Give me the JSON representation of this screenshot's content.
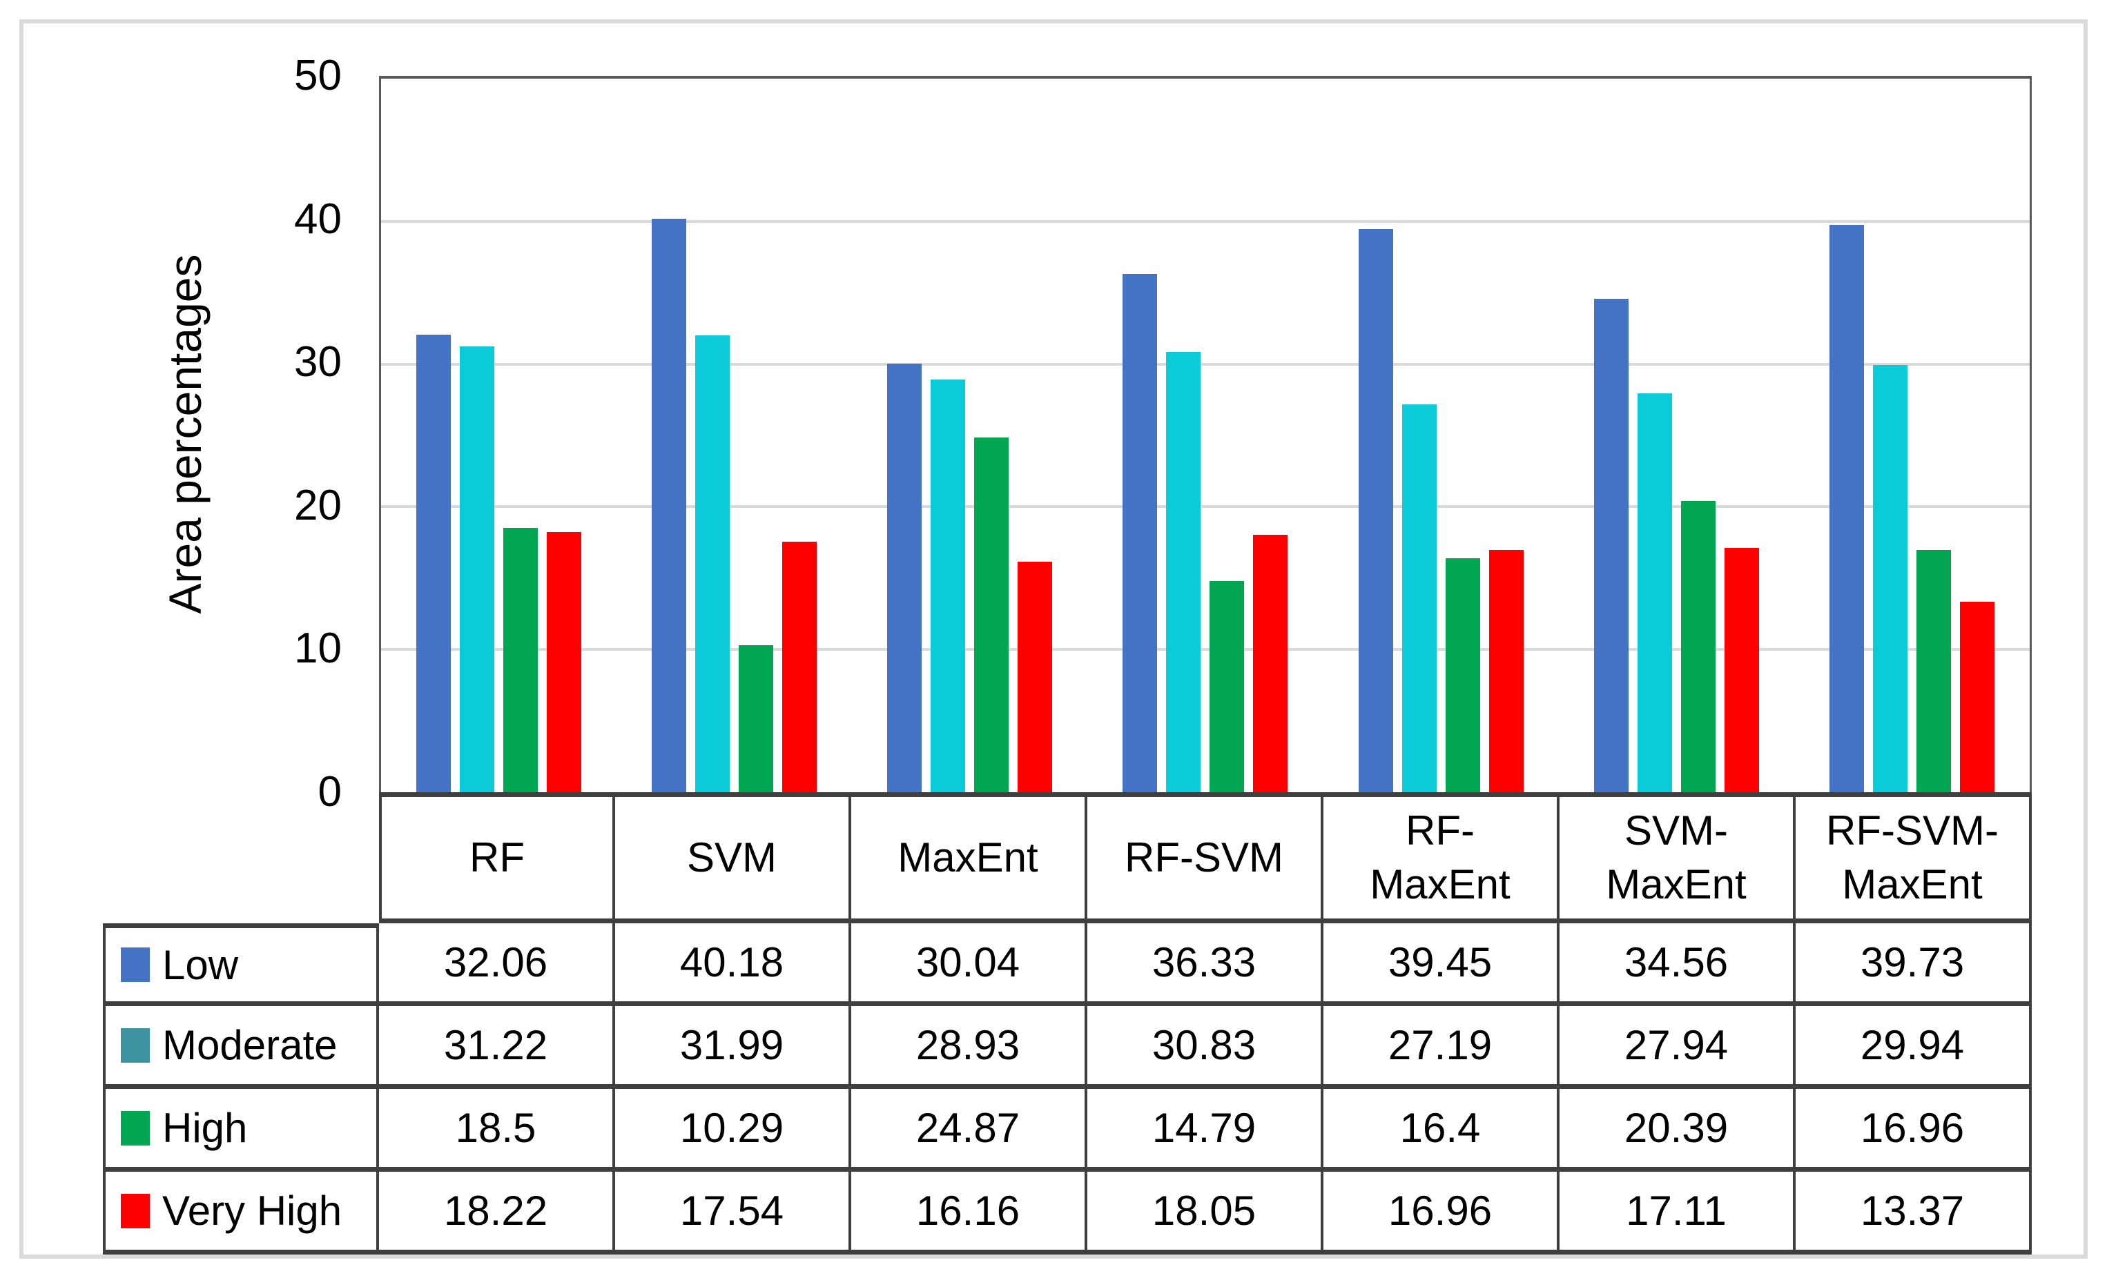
{
  "chart_data": {
    "type": "bar",
    "title": "",
    "xlabel": "",
    "ylabel": "Area percentages",
    "ylim": [
      0,
      50
    ],
    "yticks": [
      0,
      10,
      20,
      30,
      40,
      50
    ],
    "grid": true,
    "legend_position": "table-left",
    "categories": [
      "RF",
      "SVM",
      "MaxEnt",
      "RF-SVM",
      "RF-MaxEnt",
      "SVM-MaxEnt",
      "RF-SVM-MaxEnt"
    ],
    "series": [
      {
        "name": "Low",
        "bar_color": "#4472C4",
        "legend_color": "#4472C4",
        "values": [
          32.06,
          40.18,
          30.04,
          36.33,
          39.45,
          34.56,
          39.73
        ]
      },
      {
        "name": "Moderate",
        "bar_color": "#0BCBD8",
        "legend_color": "#3D94A0",
        "values": [
          31.22,
          31.99,
          28.93,
          30.83,
          27.19,
          27.94,
          29.94
        ]
      },
      {
        "name": "High",
        "bar_color": "#00A651",
        "legend_color": "#00A651",
        "values": [
          18.5,
          10.29,
          24.87,
          14.79,
          16.4,
          20.39,
          16.96
        ]
      },
      {
        "name": "Very High",
        "bar_color": "#FF0000",
        "legend_color": "#FF0000",
        "values": [
          18.22,
          17.54,
          16.16,
          18.05,
          16.96,
          17.11,
          13.37
        ]
      }
    ],
    "colors": {
      "gridline": "#D9D9D9",
      "plot_border": "#595959",
      "table_border": "#3F3F3F",
      "frame_border": "#DBDBDB",
      "text": "#000000",
      "background": "#FFFFFF"
    }
  }
}
